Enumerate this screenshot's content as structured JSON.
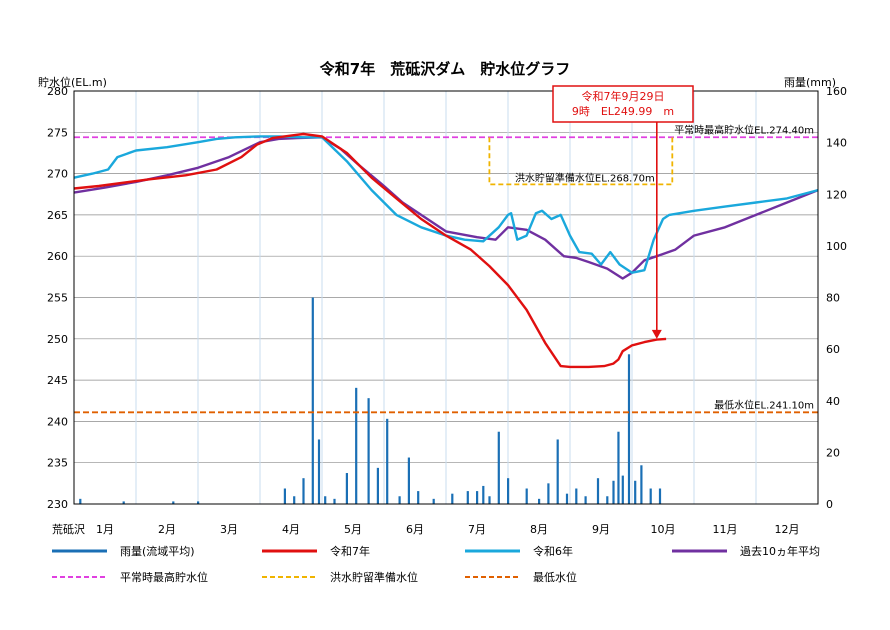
{
  "chart_data": {
    "type": "line",
    "title": "令和7年　荒砥沢ダム　貯水位グラフ",
    "y_left_label": "貯水位(EL.m)",
    "y_right_label": "雨量(mm)",
    "x_axis_name": "荒砥沢",
    "ylim_left": [
      230,
      280
    ],
    "ylim_right": [
      0,
      160
    ],
    "y_left_ticks": [
      230,
      235,
      240,
      245,
      250,
      255,
      260,
      265,
      270,
      275,
      280
    ],
    "y_right_ticks": [
      0,
      20,
      40,
      60,
      80,
      100,
      120,
      140,
      160
    ],
    "months": [
      "1月",
      "2月",
      "3月",
      "4月",
      "5月",
      "6月",
      "7月",
      "8月",
      "9月",
      "10月",
      "11月",
      "12月"
    ],
    "grid": true,
    "callout": {
      "line1": "令和7年9月29日",
      "line2": "9時　EL249.99　m"
    },
    "reference_lines": [
      {
        "name": "平常時最高貯水位",
        "label": "平常時最高貯水位EL.274.40m",
        "value": 274.4,
        "color": "#e040e0"
      },
      {
        "name": "洪水貯留準備水位",
        "label": "洪水貯留準備水位EL.268.70m",
        "value": 268.7,
        "start_month": 6.7,
        "end_month": 9.65,
        "color": "#f0b400"
      },
      {
        "name": "最低水位",
        "label": "最低水位EL.241.10m",
        "value": 241.1,
        "color": "#e06000"
      }
    ],
    "series": [
      {
        "name": "令和7年",
        "color": "#e01010",
        "x": [
          0,
          0.4,
          1.2,
          1.8,
          2.3,
          2.7,
          2.95,
          3.2,
          3.5,
          3.7,
          4.0,
          4.4,
          4.8,
          5.2,
          5.6,
          6.0,
          6.4,
          6.7,
          7.0,
          7.3,
          7.6,
          7.85,
          8.0,
          8.3,
          8.55,
          8.7,
          8.78,
          8.85,
          9.0,
          9.2,
          9.4,
          9.55
        ],
        "y": [
          268.2,
          268.5,
          269.3,
          269.8,
          270.5,
          272.0,
          273.5,
          274.3,
          274.6,
          274.8,
          274.5,
          272.5,
          269.5,
          267.0,
          264.5,
          262.5,
          260.8,
          258.8,
          256.5,
          253.5,
          249.5,
          246.7,
          246.6,
          246.6,
          246.7,
          247.0,
          247.5,
          248.5,
          249.2,
          249.6,
          249.9,
          249.99
        ]
      },
      {
        "name": "令和6年",
        "color": "#1aa8dc",
        "x": [
          0,
          0.3,
          0.55,
          0.7,
          1.0,
          1.5,
          2.0,
          2.3,
          2.6,
          3.0,
          3.3,
          3.7,
          4.0,
          4.4,
          4.8,
          5.2,
          5.6,
          6.0,
          6.3,
          6.6,
          6.85,
          7.0,
          7.05,
          7.15,
          7.3,
          7.45,
          7.55,
          7.7,
          7.85,
          8.0,
          8.15,
          8.35,
          8.5,
          8.65,
          8.8,
          9.0,
          9.2,
          9.35,
          9.5,
          9.6,
          10.0,
          10.5,
          11.0,
          11.5,
          12.0
        ],
        "y": [
          269.5,
          270.0,
          270.5,
          272.0,
          272.8,
          273.2,
          273.8,
          274.2,
          274.4,
          274.5,
          274.5,
          274.4,
          274.4,
          271.5,
          268.0,
          265.0,
          263.5,
          262.5,
          262.0,
          261.8,
          263.5,
          265.0,
          265.2,
          262.0,
          262.5,
          265.2,
          265.5,
          264.5,
          265.0,
          262.5,
          260.5,
          260.3,
          259.0,
          260.5,
          259.0,
          258.0,
          258.3,
          262.0,
          264.5,
          265.0,
          265.5,
          266.0,
          266.5,
          267.0,
          268.0
        ]
      },
      {
        "name": "過去10ヵ年平均",
        "color": "#7030a0",
        "x": [
          0,
          0.5,
          1.0,
          1.5,
          2.0,
          2.5,
          3.0,
          3.3,
          3.6,
          4.0,
          4.3,
          4.6,
          5.0,
          5.3,
          5.7,
          6.0,
          6.5,
          6.8,
          7.0,
          7.3,
          7.6,
          7.9,
          8.1,
          8.3,
          8.6,
          8.85,
          9.0,
          9.2,
          9.4,
          9.7,
          10.0,
          10.5,
          11.0,
          11.5,
          12.0
        ],
        "y": [
          267.7,
          268.3,
          269.0,
          269.8,
          270.7,
          272.0,
          273.8,
          274.2,
          274.3,
          274.4,
          273.0,
          271.0,
          268.5,
          266.5,
          264.5,
          263.0,
          262.3,
          262.0,
          263.5,
          263.2,
          262.0,
          260.0,
          259.8,
          259.3,
          258.5,
          257.3,
          258.0,
          259.5,
          260.0,
          260.8,
          262.5,
          263.5,
          265.0,
          266.5,
          268.0
        ]
      }
    ],
    "rainfall": {
      "name": "雨量(流域平均)",
      "color": "#1a6fb5",
      "x": [
        0.1,
        0.8,
        1.6,
        2.0,
        3.4,
        3.55,
        3.7,
        3.85,
        3.95,
        4.05,
        4.2,
        4.4,
        4.55,
        4.75,
        4.9,
        5.05,
        5.25,
        5.4,
        5.55,
        5.8,
        6.1,
        6.35,
        6.5,
        6.6,
        6.7,
        6.85,
        7.0,
        7.3,
        7.5,
        7.65,
        7.8,
        7.95,
        8.1,
        8.25,
        8.45,
        8.6,
        8.7,
        8.78,
        8.85,
        8.95,
        9.05,
        9.15,
        9.3,
        9.45
      ],
      "mm": [
        2,
        1,
        1,
        1,
        6,
        3,
        10,
        80,
        25,
        3,
        2,
        12,
        45,
        41,
        14,
        33,
        3,
        18,
        5,
        2,
        4,
        5,
        5,
        7,
        3,
        28,
        10,
        6,
        2,
        8,
        25,
        4,
        6,
        3,
        10,
        3,
        9,
        28,
        11,
        58,
        9,
        15,
        6,
        6
      ]
    },
    "legend": [
      {
        "label": "雨量(流域平均)",
        "color": "#1a6fb5",
        "style": "solid"
      },
      {
        "label": "令和7年",
        "color": "#e01010",
        "style": "solid"
      },
      {
        "label": "令和6年",
        "color": "#1aa8dc",
        "style": "solid"
      },
      {
        "label": "過去10ヵ年平均",
        "color": "#7030a0",
        "style": "solid"
      },
      {
        "label": "平常時最高貯水位",
        "color": "#e040e0",
        "style": "dashed"
      },
      {
        "label": "洪水貯留準備水位",
        "color": "#f0b400",
        "style": "dashed"
      },
      {
        "label": "最低水位",
        "color": "#e06000",
        "style": "dashed"
      }
    ]
  }
}
